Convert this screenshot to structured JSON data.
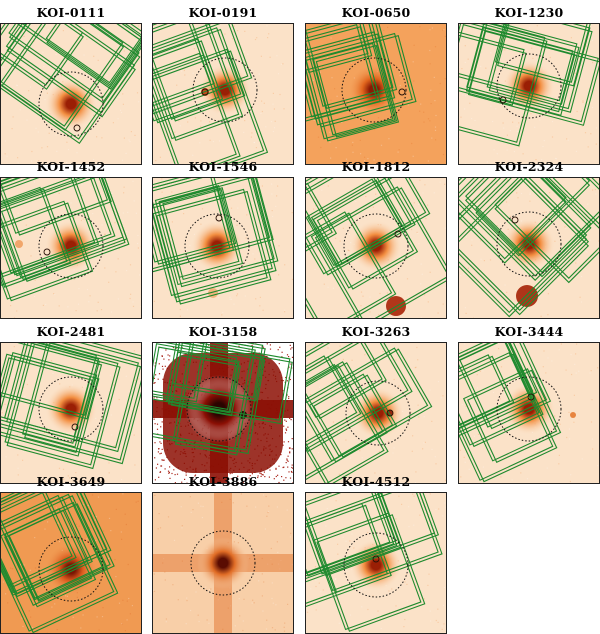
{
  "panels": [
    {
      "label": "KOI-0111",
      "background": "#fbe2c8",
      "core": "#9a1f05",
      "halo": "#f28a3a",
      "has_outlines": true,
      "has_companion_circle": true,
      "diffraction_cross": false,
      "noisy": false
    },
    {
      "label": "KOI-0191",
      "background": "#fbe2c8",
      "core": "#9a1f05",
      "halo": "#f28a3a",
      "has_outlines": true,
      "has_companion_circle": true,
      "diffraction_cross": false,
      "noisy": false
    },
    {
      "label": "KOI-0650",
      "background": "#f4a25c",
      "core": "#8a1a04",
      "halo": "#e0621a",
      "has_outlines": true,
      "has_companion_circle": true,
      "diffraction_cross": false,
      "noisy": false
    },
    {
      "label": "KOI-1230",
      "background": "#fbe2c8",
      "core": "#9a1f05",
      "halo": "#f28a3a",
      "has_outlines": true,
      "has_companion_circle": true,
      "diffraction_cross": false,
      "noisy": false
    },
    {
      "label": "KOI-1452",
      "background": "#fbe2c8",
      "core": "#9a1f05",
      "halo": "#f28a3a",
      "has_outlines": true,
      "has_companion_circle": true,
      "diffraction_cross": false,
      "noisy": false
    },
    {
      "label": "KOI-1546",
      "background": "#fbe2c8",
      "core": "#9a1f05",
      "halo": "#f28a3a",
      "has_outlines": true,
      "has_companion_circle": true,
      "diffraction_cross": false,
      "noisy": false
    },
    {
      "label": "KOI-1812",
      "background": "#fbe2c8",
      "core": "#9a1f05",
      "halo": "#f28a3a",
      "has_outlines": true,
      "has_companion_circle": true,
      "diffraction_cross": false,
      "noisy": false
    },
    {
      "label": "KOI-2324",
      "background": "#fbe2c8",
      "core": "#9a1f05",
      "halo": "#f28a3a",
      "has_outlines": true,
      "has_companion_circle": true,
      "diffraction_cross": false,
      "noisy": false
    },
    {
      "label": "KOI-2481",
      "background": "#fbe2c8",
      "core": "#9a1f05",
      "halo": "#f28a3a",
      "has_outlines": true,
      "has_companion_circle": true,
      "diffraction_cross": false,
      "noisy": false
    },
    {
      "label": "KOI-3158",
      "background": "#ffffff",
      "core": "#2a0400",
      "halo": "#8c0f04",
      "has_outlines": true,
      "has_companion_circle": false,
      "diffraction_cross": true,
      "noisy": true
    },
    {
      "label": "KOI-3263",
      "background": "#fbe2c8",
      "core": "#9a1f05",
      "halo": "#f28a3a",
      "has_outlines": true,
      "has_companion_circle": true,
      "diffraction_cross": false,
      "noisy": false
    },
    {
      "label": "KOI-3444",
      "background": "#fbe2c8",
      "core": "#9a1f05",
      "halo": "#f28a3a",
      "has_outlines": true,
      "has_companion_circle": true,
      "diffraction_cross": false,
      "noisy": false
    },
    {
      "label": "KOI-3649",
      "background": "#f09a52",
      "core": "#7a1604",
      "halo": "#d9561a",
      "has_outlines": true,
      "has_companion_circle": false,
      "diffraction_cross": false,
      "noisy": false
    },
    {
      "label": "KOI-3886",
      "background": "#f8cfa8",
      "core": "#5a0c02",
      "halo": "#e06a22",
      "has_outlines": false,
      "has_companion_circle": false,
      "diffraction_cross": true,
      "noisy": false
    },
    {
      "label": "KOI-4512",
      "background": "#fbe2c8",
      "core": "#9a1f05",
      "halo": "#f28a3a",
      "has_outlines": true,
      "has_companion_circle": true,
      "diffraction_cross": false,
      "noisy": false
    }
  ],
  "colors": {
    "outline": "#1f8a2e",
    "aperture_ring": "#111111",
    "frame": "#222222"
  }
}
